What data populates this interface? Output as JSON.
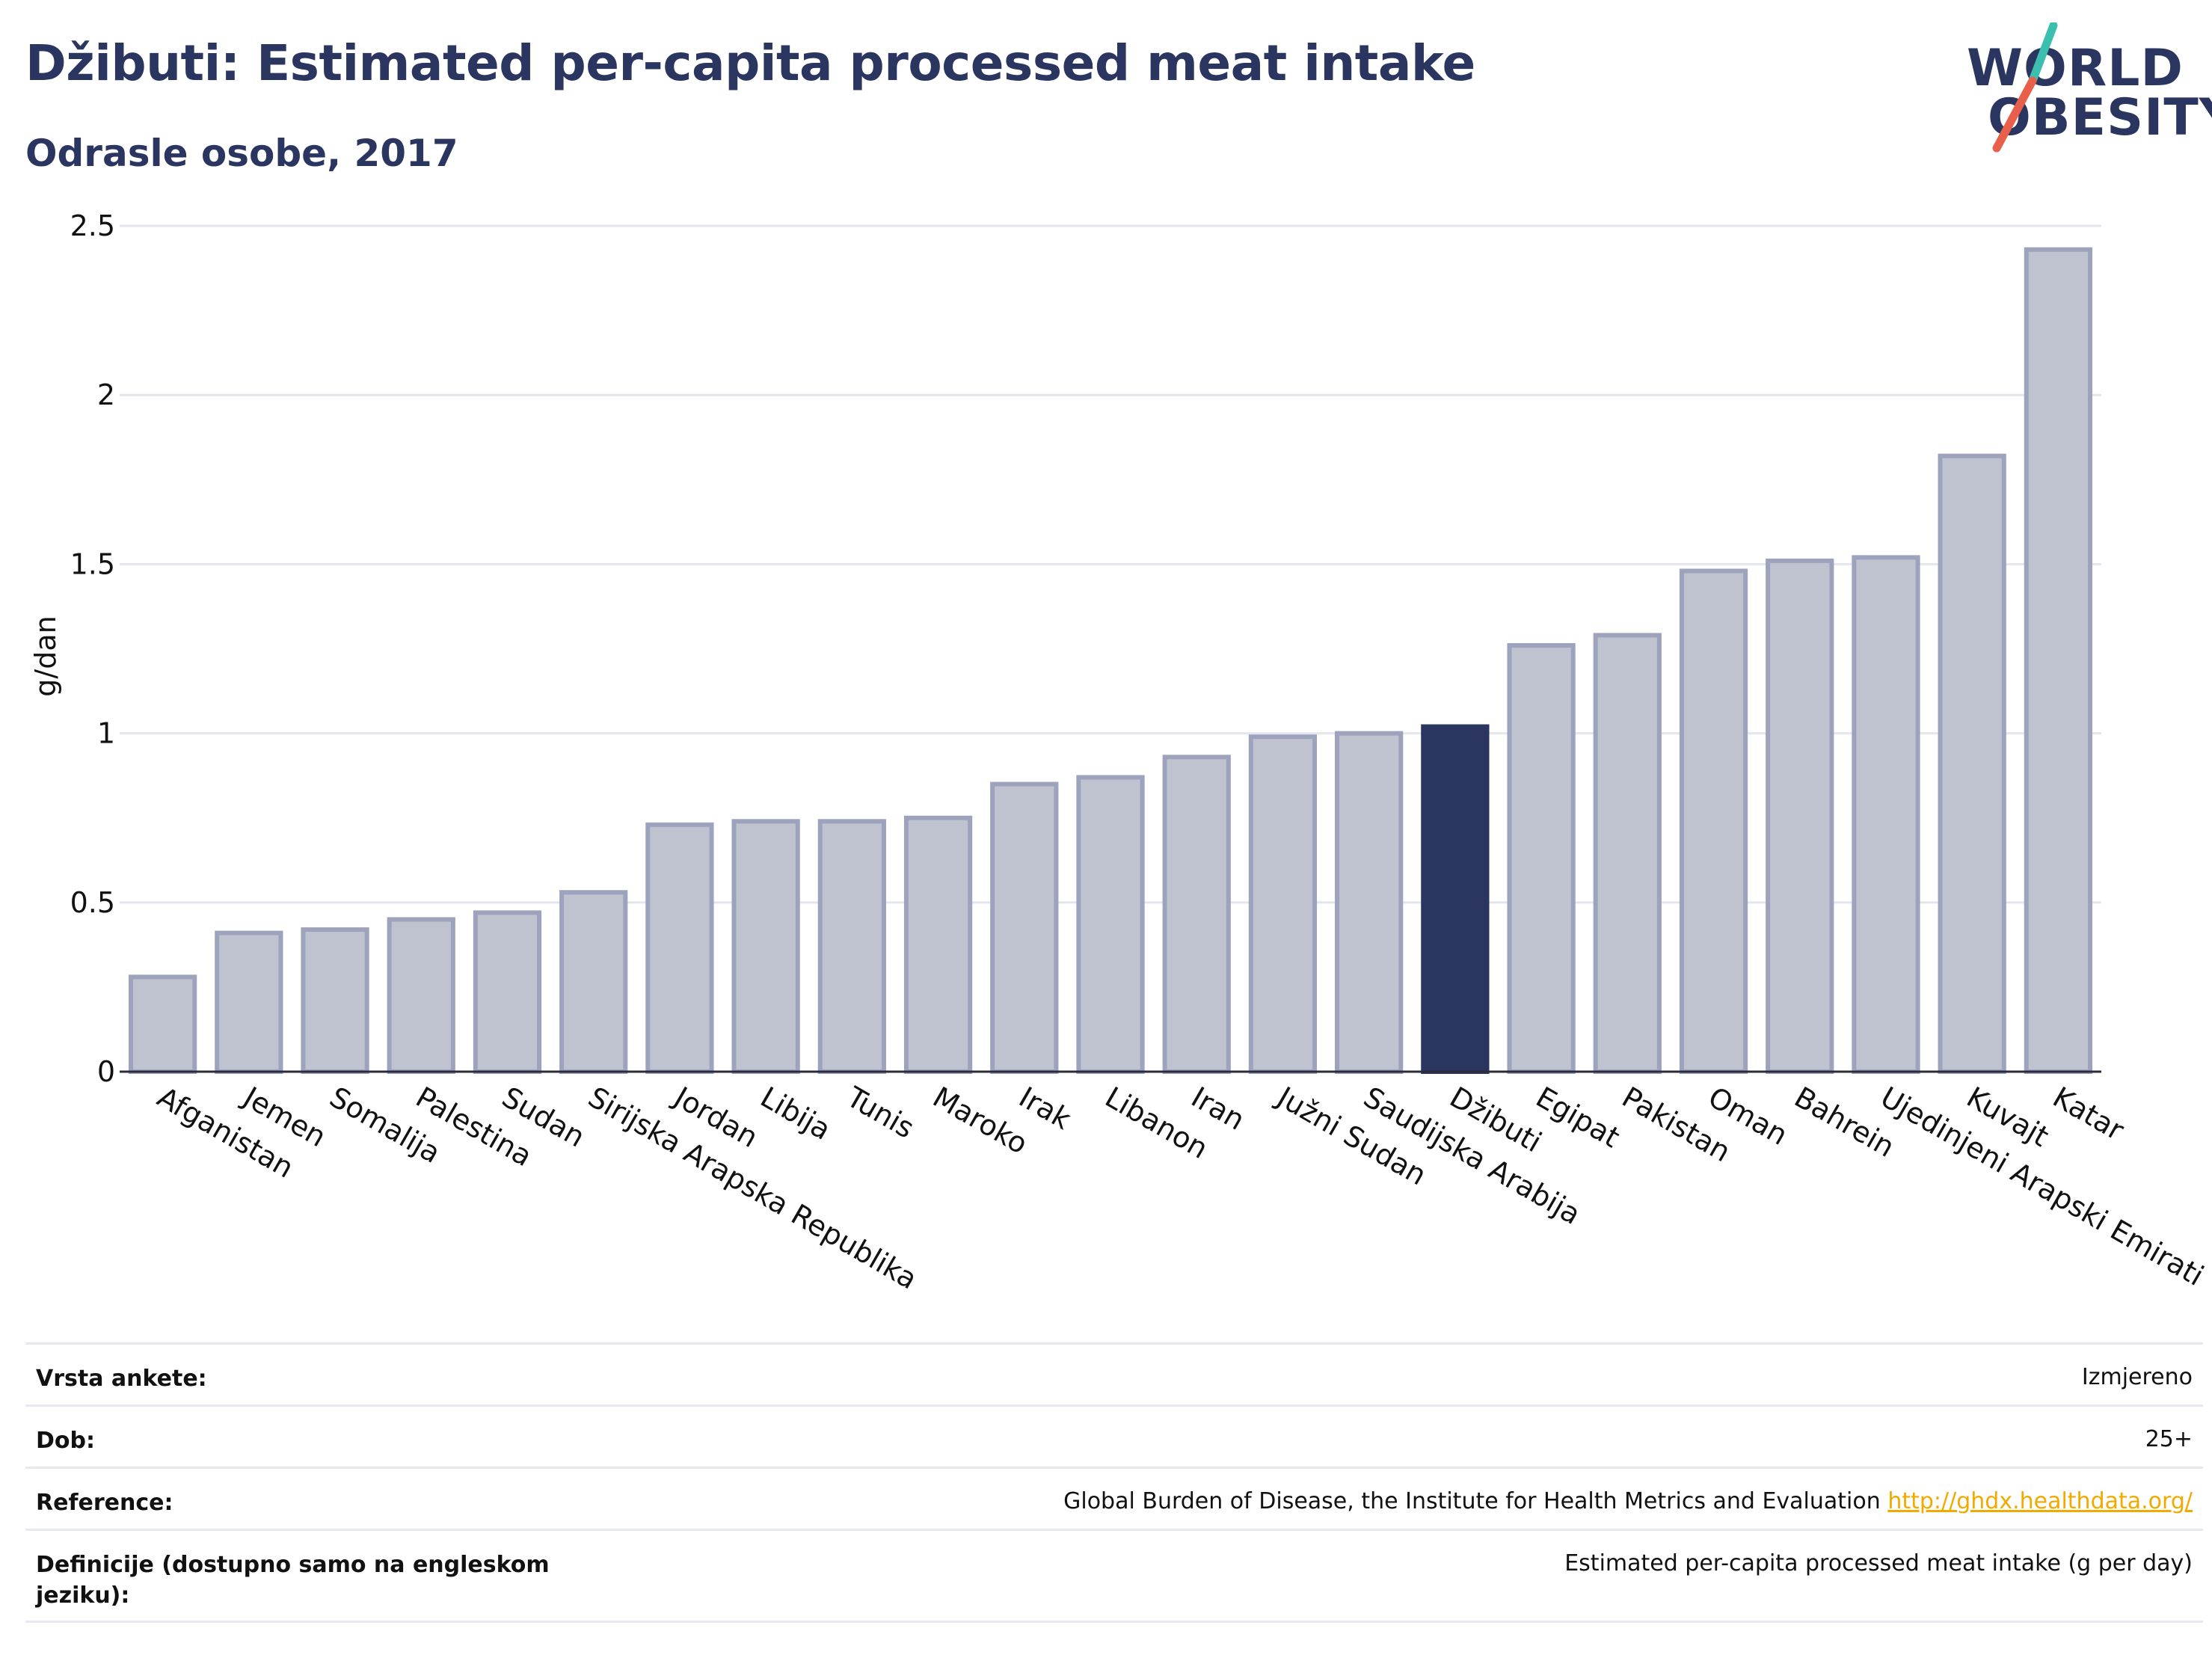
{
  "header": {
    "title": "Džibuti: Estimated per-capita processed meat intake",
    "subtitle": "Odrasle osobe, 2017"
  },
  "logo": {
    "line1": "WORLD",
    "line2": "OBESITY",
    "accent_teal": "#3dbfb0",
    "accent_red": "#e8604c"
  },
  "chart_data": {
    "type": "bar",
    "ylabel": "g/dan",
    "ylim": [
      0,
      2.5
    ],
    "yticks": [
      "0",
      "0.5",
      "1",
      "1.5",
      "2",
      "2.5"
    ],
    "ytick_values": [
      0,
      0.5,
      1,
      1.5,
      2,
      2.5
    ],
    "grid": true,
    "highlight": "Džibuti",
    "colors": {
      "bar": "#bfc3cf",
      "bar_border": "#9ea3bd",
      "highlight": "#2a3560"
    },
    "categories": [
      "Afganistan",
      "Jemen",
      "Somalija",
      "Palestina",
      "Sudan",
      "Sirijska Arapska Republika",
      "Jordan",
      "Libija",
      "Tunis",
      "Maroko",
      "Irak",
      "Libanon",
      "Iran",
      "Južni Sudan",
      "Saudijska Arabija",
      "Džibuti",
      "Egipat",
      "Pakistan",
      "Oman",
      "Bahrein",
      "Ujedinjeni Arapski Emirati",
      "Kuvajt",
      "Katar"
    ],
    "values": [
      0.28,
      0.41,
      0.42,
      0.45,
      0.47,
      0.53,
      0.73,
      0.74,
      0.74,
      0.75,
      0.85,
      0.87,
      0.93,
      0.99,
      1.0,
      1.02,
      1.26,
      1.29,
      1.48,
      1.51,
      1.52,
      1.82,
      2.43
    ]
  },
  "meta": {
    "survey_label": "Vrsta ankete:",
    "survey_value": "Izmjereno",
    "age_label": "Dob:",
    "age_value": "25+",
    "ref_label": "Reference:",
    "ref_value": "Global Burden of Disease, the Institute for Health Metrics and Evaluation",
    "ref_link": "http://ghdx.healthdata.org/",
    "def_label": "Definicije (dostupno samo na engleskom jeziku):",
    "def_value": "Estimated per-capita processed meat intake (g per day)"
  }
}
